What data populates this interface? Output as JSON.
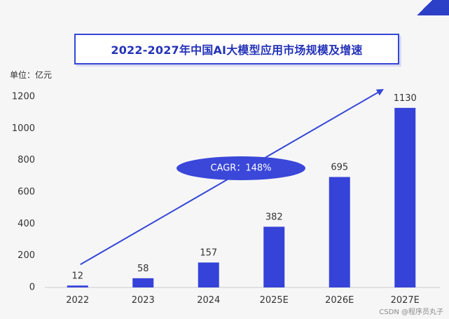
{
  "title": "2022-2027年中国AI大模型应用市场规模及增速",
  "unit_label": "单位：亿元",
  "watermark": "CSDN @程序员丸子",
  "colors": {
    "bar": "#3543d8",
    "accent": "#3547d6",
    "ellipse": "#3a47d9"
  },
  "chart_data": {
    "type": "bar",
    "title": "2022-2027年中国AI大模型应用市场规模及增速",
    "ylabel": "单位：亿元",
    "xlabel": "",
    "categories": [
      "2022",
      "2023",
      "2024",
      "2025E",
      "2026E",
      "2027E"
    ],
    "values": [
      12,
      58,
      157,
      382,
      695,
      1130
    ],
    "data_labels": [
      "12",
      "58",
      "157",
      "382",
      "695",
      "1130"
    ],
    "ylim": [
      0,
      1200
    ],
    "yticks": [
      0,
      200,
      400,
      600,
      800,
      1000,
      1200
    ],
    "ytick_labels": [
      "0",
      "200",
      "400",
      "600",
      "800",
      "1000",
      "1200"
    ],
    "grid": false,
    "annotations": [
      {
        "type": "trend-arrow",
        "from_category": "2022",
        "to_category": "2027E"
      },
      {
        "type": "ellipse-label",
        "text": "CAGR：148%"
      }
    ]
  }
}
